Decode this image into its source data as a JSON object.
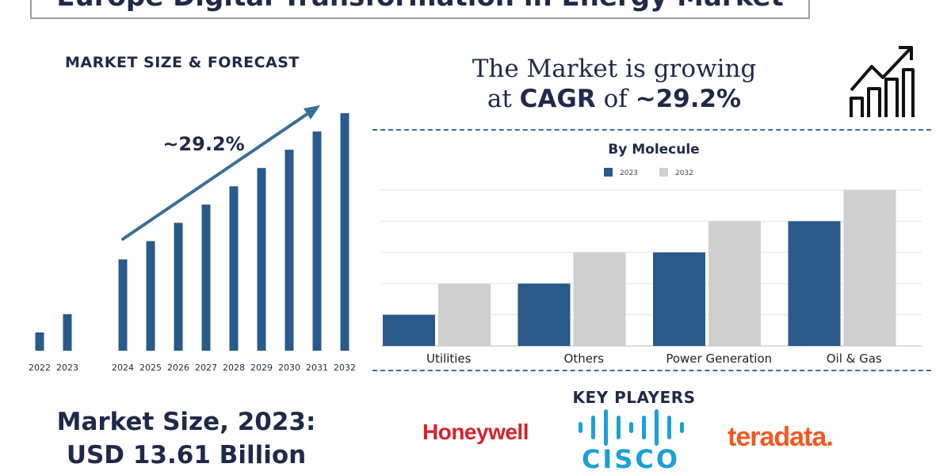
{
  "page_title": "Europe Digital Transformation in Energy Market",
  "left_panel": {
    "heading": "MARKET SIZE & FORECAST",
    "cagr_label": "~29.2%"
  },
  "cagr": {
    "line1": "The Market is growing",
    "at": "at ",
    "cagr_word": "CAGR",
    "of": " of ",
    "value": "~29.2%"
  },
  "market_size": {
    "line1": "Market Size, 2023:",
    "line2": "USD 13.61 Billion"
  },
  "key_players": {
    "heading": "KEY PLAYERS",
    "logos": [
      "Honeywell",
      "CISCO",
      "teradata."
    ]
  },
  "colors": {
    "navy": "#1f2a4a",
    "bar_dark": "#2a5a8a",
    "bar_light": "#cfcfcf",
    "honeywell": "#d5232b",
    "cisco": "#1ba0d7",
    "teradata": "#f05a22"
  },
  "chart_data": [
    {
      "type": "bar",
      "title": "MARKET SIZE & FORECAST",
      "categories": [
        "2022",
        "2023",
        "2024",
        "2025",
        "2026",
        "2027",
        "2028",
        "2029",
        "2030",
        "2031",
        "2032"
      ],
      "values": [
        1,
        2,
        5,
        6,
        7,
        8,
        9,
        10,
        11,
        12,
        13
      ],
      "annotation": "~29.2%",
      "ylim": [
        0,
        13
      ],
      "grid": false
    },
    {
      "type": "bar",
      "title": "By Molecule",
      "categories": [
        "Utilities",
        "Others",
        "Power Generation",
        "Oil & Gas"
      ],
      "series": [
        {
          "name": "2023",
          "values": [
            1,
            2,
            3,
            4
          ]
        },
        {
          "name": "2032",
          "values": [
            2,
            3,
            4,
            5
          ]
        }
      ],
      "ylim": [
        0,
        5
      ],
      "grid": true,
      "legend": "top"
    }
  ]
}
